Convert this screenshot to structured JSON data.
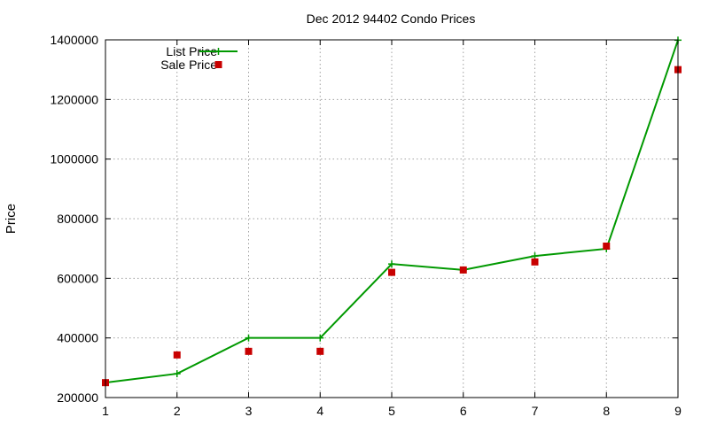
{
  "chart_data": {
    "type": "line",
    "title": "Dec 2012 94402 Condo Prices",
    "xlabel": "",
    "ylabel": "Price",
    "x": [
      1,
      2,
      3,
      4,
      5,
      6,
      7,
      8,
      9
    ],
    "xlim": [
      1,
      9
    ],
    "ylim": [
      200000,
      1400000
    ],
    "xticks": [
      1,
      2,
      3,
      4,
      5,
      6,
      7,
      8,
      9
    ],
    "yticks": [
      200000,
      400000,
      600000,
      800000,
      1000000,
      1200000,
      1400000
    ],
    "grid": true,
    "legend_position": "top-left",
    "series": [
      {
        "name": "List Price",
        "kind": "line",
        "marker": "plus",
        "color": "#009900",
        "values": [
          250000,
          280000,
          400000,
          400000,
          648000,
          628000,
          675000,
          699000,
          1399000
        ]
      },
      {
        "name": "Sale Price",
        "kind": "scatter",
        "marker": "square",
        "color": "#c80000",
        "values": [
          250000,
          343000,
          355000,
          355000,
          620000,
          628000,
          655000,
          708000,
          1300000
        ]
      }
    ]
  }
}
